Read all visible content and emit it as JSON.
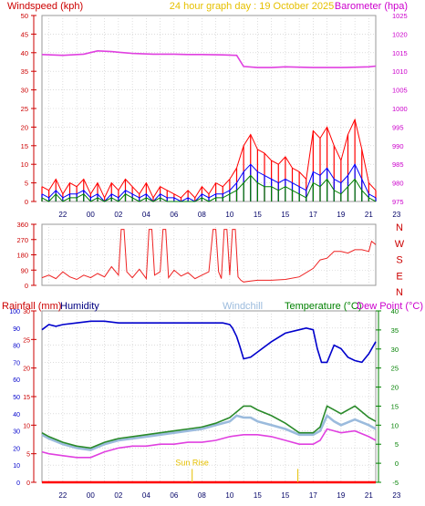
{
  "header": {
    "left": "Windspeed (kph)",
    "center": "24 hour graph day : 19 October 2025",
    "right": "Barometer (hpa)"
  },
  "colors": {
    "wind_gust": "#ff0000",
    "wind_avg": "#0000ff",
    "wind_min": "#008000",
    "barometer": "#e040e0",
    "direction": "#ee2222",
    "humidity": "#0000cc",
    "windchill": "#9bbbdd",
    "temperature": "#2a8a2a",
    "dew_point": "#e040e0",
    "rainfall": "#ff0000",
    "axis_left": "#cc0000",
    "axis_green": "#008000",
    "grid": "#c8c8c8",
    "label_yellow": "#e6c000"
  },
  "chart_data": [
    {
      "id": "wind_baro",
      "type": "line",
      "title": "24 hour graph day : 19 October 2025",
      "ylabel_left": "Windspeed (kph)",
      "ylabel_right": "Barometer (hpa)",
      "ylim_left": [
        0,
        50
      ],
      "ylim_right": [
        975,
        1025
      ],
      "yticks_left": [
        "0",
        "5",
        "10",
        "15",
        "20",
        "25",
        "30",
        "35",
        "40",
        "45",
        "50"
      ],
      "yticks_right": [
        "975",
        "980",
        "985",
        "990",
        "995",
        "1000",
        "1005",
        "1010",
        "1015",
        "1020",
        "1025"
      ],
      "xlim": [
        20.5,
        44.5
      ],
      "xticks": [
        "22",
        "00",
        "02",
        "04",
        "06",
        "08",
        "10",
        "15",
        "15",
        "17",
        "19",
        "21",
        "23"
      ],
      "grid": true,
      "series": [
        {
          "name": "gust",
          "axis": "left",
          "x": [
            20.5,
            21,
            21.5,
            22,
            22.5,
            23,
            23.5,
            24,
            24.5,
            25,
            25.5,
            26,
            26.5,
            27,
            27.5,
            28,
            28.5,
            29,
            29.5,
            30,
            30.5,
            31,
            31.5,
            32,
            32.5,
            33,
            33.5,
            34,
            34.5,
            35,
            35.5,
            36,
            36.5,
            37,
            37.5,
            38,
            38.5,
            39,
            39.5,
            40,
            40.5,
            41,
            41.5,
            42,
            42.5,
            43,
            43.5,
            44,
            44.5
          ],
          "values": [
            4,
            3,
            6,
            2,
            5,
            4,
            6,
            2,
            5,
            1,
            5,
            3,
            6,
            4,
            2,
            5,
            1,
            4,
            3,
            2,
            1,
            3,
            1,
            4,
            2,
            5,
            4,
            6,
            9,
            15,
            18,
            14,
            13,
            11,
            10,
            12,
            9,
            8,
            6,
            19,
            17,
            20,
            15,
            11,
            18,
            22,
            14,
            5,
            3
          ]
        },
        {
          "name": "average",
          "axis": "left",
          "x": [
            20.5,
            21,
            21.5,
            22,
            22.5,
            23,
            23.5,
            24,
            24.5,
            25,
            25.5,
            26,
            26.5,
            27,
            27.5,
            28,
            28.5,
            29,
            29.5,
            30,
            30.5,
            31,
            31.5,
            32,
            32.5,
            33,
            33.5,
            34,
            34.5,
            35,
            35.5,
            36,
            36.5,
            37,
            37.5,
            38,
            38.5,
            39,
            39.5,
            40,
            40.5,
            41,
            41.5,
            42,
            42.5,
            43,
            43.5,
            44,
            44.5
          ],
          "values": [
            2,
            1,
            3,
            1,
            2,
            2,
            3,
            1,
            2,
            0,
            2,
            1,
            3,
            2,
            1,
            2,
            0,
            2,
            1,
            1,
            0,
            1,
            0,
            2,
            1,
            2,
            2,
            3,
            5,
            8,
            10,
            8,
            7,
            6,
            5,
            6,
            5,
            4,
            3,
            8,
            7,
            9,
            6,
            5,
            7,
            10,
            6,
            2,
            1
          ]
        },
        {
          "name": "minimum",
          "axis": "left",
          "x": [
            20.5,
            21,
            21.5,
            22,
            22.5,
            23,
            23.5,
            24,
            24.5,
            25,
            25.5,
            26,
            26.5,
            27,
            27.5,
            28,
            28.5,
            29,
            29.5,
            30,
            30.5,
            31,
            31.5,
            32,
            32.5,
            33,
            33.5,
            34,
            34.5,
            35,
            35.5,
            36,
            36.5,
            37,
            37.5,
            38,
            38.5,
            39,
            39.5,
            40,
            40.5,
            41,
            41.5,
            42,
            42.5,
            43,
            43.5,
            44,
            44.5
          ],
          "values": [
            1,
            0,
            2,
            0,
            1,
            1,
            2,
            0,
            1,
            0,
            1,
            0,
            2,
            1,
            0,
            1,
            0,
            1,
            0,
            0,
            0,
            0,
            0,
            1,
            0,
            1,
            1,
            2,
            3,
            5,
            7,
            5,
            4,
            4,
            3,
            4,
            3,
            2,
            1,
            5,
            4,
            6,
            3,
            2,
            4,
            6,
            3,
            1,
            0
          ]
        },
        {
          "name": "barometer",
          "axis": "right",
          "x": [
            20.5,
            22,
            23.5,
            24.5,
            25.5,
            27,
            28.5,
            30,
            31,
            32,
            33.5,
            34.5,
            35,
            36,
            37,
            38,
            40,
            42,
            44,
            44.5
          ],
          "values": [
            1014.5,
            1014.3,
            1014.6,
            1015.5,
            1015.3,
            1014.8,
            1014.6,
            1014.6,
            1014.5,
            1014.5,
            1014.4,
            1014.3,
            1011.3,
            1011.0,
            1011.0,
            1011.2,
            1011.0,
            1011.0,
            1011.2,
            1011.4
          ]
        }
      ]
    },
    {
      "id": "direction",
      "type": "line",
      "ylim": [
        0,
        360
      ],
      "yticks": [
        "0",
        "90",
        "180",
        "270",
        "360"
      ],
      "ylabels_right": [
        "N",
        "W",
        "S",
        "E",
        "N"
      ],
      "xlim": [
        20.5,
        44.5
      ],
      "grid": true,
      "series": [
        {
          "name": "direction",
          "x": [
            20.5,
            21,
            21.5,
            22,
            22.5,
            23,
            23.5,
            24,
            24.5,
            25,
            25.5,
            26,
            26.2,
            26.4,
            26.6,
            27,
            27.5,
            28,
            28.2,
            28.4,
            28.6,
            29,
            29.2,
            29.4,
            29.6,
            30,
            30.5,
            31,
            31.5,
            32,
            32.5,
            32.8,
            33,
            33.2,
            33.4,
            33.6,
            33.8,
            34,
            34.2,
            34.4,
            34.6,
            34.8,
            35,
            35.5,
            36,
            37,
            38,
            39,
            40,
            40.5,
            41,
            41.5,
            42,
            42.5,
            43,
            43.5,
            44,
            44.2,
            44.5
          ],
          "values": [
            45,
            60,
            40,
            80,
            50,
            35,
            60,
            45,
            70,
            50,
            110,
            60,
            330,
            330,
            80,
            45,
            95,
            40,
            330,
            330,
            60,
            80,
            330,
            330,
            45,
            90,
            55,
            75,
            40,
            60,
            80,
            330,
            330,
            80,
            40,
            330,
            330,
            60,
            330,
            330,
            50,
            30,
            20,
            25,
            30,
            30,
            35,
            50,
            100,
            150,
            160,
            200,
            200,
            190,
            210,
            210,
            200,
            260,
            240
          ]
        }
      ]
    },
    {
      "id": "temp_hum",
      "type": "line",
      "ylabel_left": "Rainfall (mm)",
      "ylabel_humidity": "Humidity",
      "ylabel_windchill": "Windchill",
      "ylabel_temperature": "Temperature (°C)",
      "ylabel_dewpoint": "Dew Point (°C)",
      "ylim_humidity": [
        0,
        100
      ],
      "ylim_rain": [
        0,
        30
      ],
      "ylim_temp": [
        -5,
        40
      ],
      "yticks_humidity": [
        "0",
        "10",
        "20",
        "30",
        "40",
        "50",
        "60",
        "70",
        "80",
        "90",
        "100"
      ],
      "yticks_rain": [
        "0",
        "5",
        "10",
        "15",
        "20",
        "25",
        "30"
      ],
      "yticks_temp": [
        "-5",
        "0",
        "5",
        "10",
        "15",
        "20",
        "25",
        "30",
        "35",
        "40"
      ],
      "xlim": [
        20.5,
        44.5
      ],
      "xticks": [
        "22",
        "00",
        "02",
        "04",
        "06",
        "08",
        "10",
        "15",
        "15",
        "17",
        "19",
        "21",
        "23"
      ],
      "annotation": "Sun Rise",
      "sunrise_x": 31.3,
      "sunset_x": 38.9,
      "grid": true,
      "series": [
        {
          "name": "humidity",
          "axis": "humidity",
          "x": [
            20.5,
            21,
            21.5,
            22,
            23,
            24,
            25,
            26,
            28,
            30,
            31,
            32,
            33,
            33.5,
            34,
            34.2,
            34.5,
            34.7,
            35,
            35.5,
            36,
            37,
            38,
            39,
            39.5,
            40,
            40.3,
            40.6,
            41,
            41.5,
            42,
            42.5,
            43,
            43.5,
            44,
            44.5
          ],
          "values": [
            89,
            92,
            91,
            92,
            93,
            94,
            94,
            93,
            93,
            93,
            93,
            93,
            93,
            93,
            92,
            90,
            85,
            80,
            72,
            73,
            76,
            82,
            87,
            89,
            90,
            89,
            78,
            70,
            70,
            80,
            78,
            73,
            71,
            70,
            75,
            82
          ]
        },
        {
          "name": "windchill",
          "axis": "temp",
          "x": [
            20.5,
            21,
            22,
            23,
            24,
            25,
            26,
            27,
            28,
            29,
            30,
            31,
            32,
            33,
            34,
            34.5,
            35,
            35.5,
            36,
            37,
            38,
            39,
            40,
            40.5,
            41,
            41.5,
            42,
            43,
            44,
            44.5
          ],
          "values": [
            7.5,
            6.5,
            5,
            4,
            3.5,
            5,
            6,
            6.5,
            7,
            7.5,
            8,
            8.5,
            9,
            10,
            11,
            12.5,
            12,
            12,
            11,
            10,
            9,
            7.5,
            7.5,
            8.5,
            12.5,
            11,
            10,
            11.5,
            10,
            9
          ]
        },
        {
          "name": "temperature",
          "axis": "temp",
          "x": [
            20.5,
            21,
            22,
            23,
            24,
            25,
            26,
            27,
            28,
            29,
            30,
            31,
            32,
            33,
            34,
            34.5,
            35,
            35.5,
            36,
            37,
            38,
            39,
            40,
            40.5,
            41,
            41.5,
            42,
            43,
            44,
            44.5
          ],
          "values": [
            8,
            7,
            5.5,
            4.5,
            4,
            5.5,
            6.5,
            7,
            7.5,
            8,
            8.5,
            9,
            9.5,
            10.5,
            12,
            13.5,
            15,
            15,
            14,
            12.5,
            10.5,
            8,
            8,
            9.5,
            15,
            14,
            13,
            15,
            12,
            11
          ]
        },
        {
          "name": "dew_point",
          "axis": "temp",
          "x": [
            20.5,
            21,
            22,
            23,
            24,
            25,
            26,
            27,
            28,
            29,
            30,
            31,
            32,
            33,
            34,
            35,
            36,
            37,
            38,
            39,
            40,
            40.5,
            41,
            42,
            43,
            44,
            44.5
          ],
          "values": [
            3,
            2.5,
            2,
            1.5,
            1.5,
            3,
            4,
            4.5,
            4.5,
            5,
            5,
            5.5,
            5.5,
            6,
            7,
            7.5,
            7.5,
            7,
            6,
            5,
            5,
            6,
            9,
            8,
            8.5,
            7,
            6
          ]
        },
        {
          "name": "rainfall",
          "axis": "rain",
          "x": [
            20.5,
            44.5
          ],
          "values": [
            0,
            0
          ]
        }
      ]
    }
  ]
}
